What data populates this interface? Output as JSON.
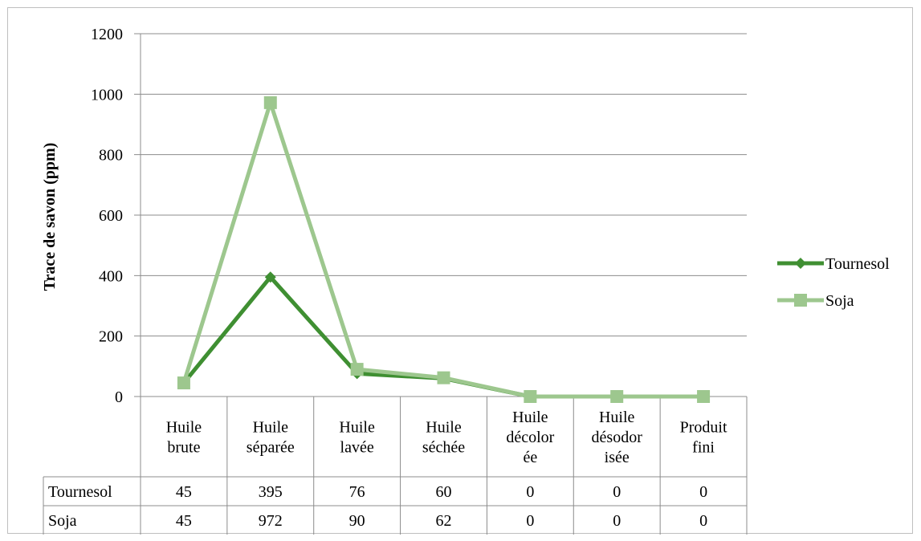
{
  "chart_data": {
    "type": "line",
    "title": "",
    "xlabel": "",
    "ylabel": "Trace de savon (ppm)",
    "ylim": [
      0,
      1200
    ],
    "yticks": [
      0,
      200,
      400,
      600,
      800,
      1000,
      1200
    ],
    "grid": true,
    "legend_position": "right",
    "categories": [
      [
        "Huile",
        "brute"
      ],
      [
        "Huile",
        "séparée"
      ],
      [
        "Huile",
        "lavée"
      ],
      [
        "Huile",
        "séchée"
      ],
      [
        "Huile",
        "décolor",
        "ée"
      ],
      [
        "Huile",
        "désodor",
        "isée"
      ],
      [
        "Produit",
        "fini"
      ]
    ],
    "series": [
      {
        "name": "Tournesol",
        "values": [
          45,
          395,
          76,
          60,
          0,
          0,
          0
        ],
        "color": "#3f8f32",
        "marker": "diamond"
      },
      {
        "name": "Soja",
        "values": [
          45,
          972,
          90,
          62,
          0,
          0,
          0
        ],
        "color": "#9dc78e",
        "marker": "square"
      }
    ]
  }
}
